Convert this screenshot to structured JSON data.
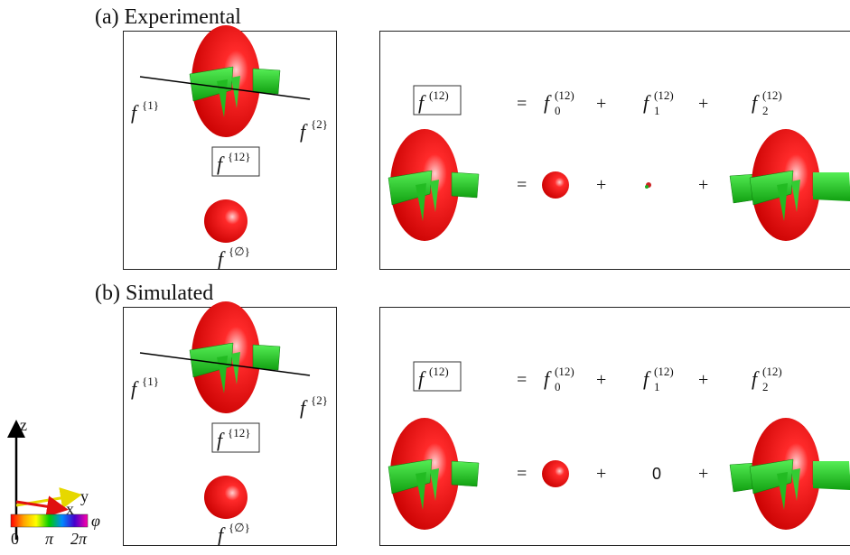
{
  "panels": [
    {
      "title": "(a) Experimental",
      "left": {
        "f1": {
          "base": "f",
          "sup": "{1}"
        },
        "f2": {
          "base": "f",
          "sup": "{2}"
        },
        "f12": {
          "base": "f",
          "sup": "{12}"
        },
        "fempty": {
          "base": "f",
          "sup": "{∅}"
        }
      },
      "equation": {
        "lhs": {
          "base": "f",
          "sup": "(12)"
        },
        "terms": [
          {
            "base": "f",
            "sub": "0",
            "sup": "(12)"
          },
          {
            "base": "f",
            "sub": "1",
            "sup": "(12)"
          },
          {
            "base": "f",
            "sub": "2",
            "sup": "(12)"
          }
        ],
        "operators": [
          "=",
          "+",
          "+"
        ],
        "row2_operators": [
          "=",
          "+",
          "+"
        ]
      }
    },
    {
      "title": "(b) Simulated",
      "left": {
        "f1": {
          "base": "f",
          "sup": "{1}"
        },
        "f2": {
          "base": "f",
          "sup": "{2}"
        },
        "f12": {
          "base": "f",
          "sup": "{12}"
        },
        "fempty": {
          "base": "f",
          "sup": "{∅}"
        }
      },
      "equation": {
        "lhs": {
          "base": "f",
          "sup": "(12)"
        },
        "terms": [
          {
            "base": "f",
            "sub": "0",
            "sup": "(12)"
          },
          {
            "base": "f",
            "sub": "1",
            "sup": "(12)"
          },
          {
            "base": "f",
            "sub": "2",
            "sup": "(12)"
          }
        ],
        "operators": [
          "=",
          "+",
          "+"
        ],
        "row2_operators": [
          "=",
          "+",
          "+"
        ],
        "zero": "0"
      }
    }
  ],
  "axes_legend": {
    "z": "z",
    "y": "y",
    "x": "x",
    "colorbar_label": "φ",
    "colorbar_ticks": [
      "0",
      "π",
      "2π"
    ]
  }
}
